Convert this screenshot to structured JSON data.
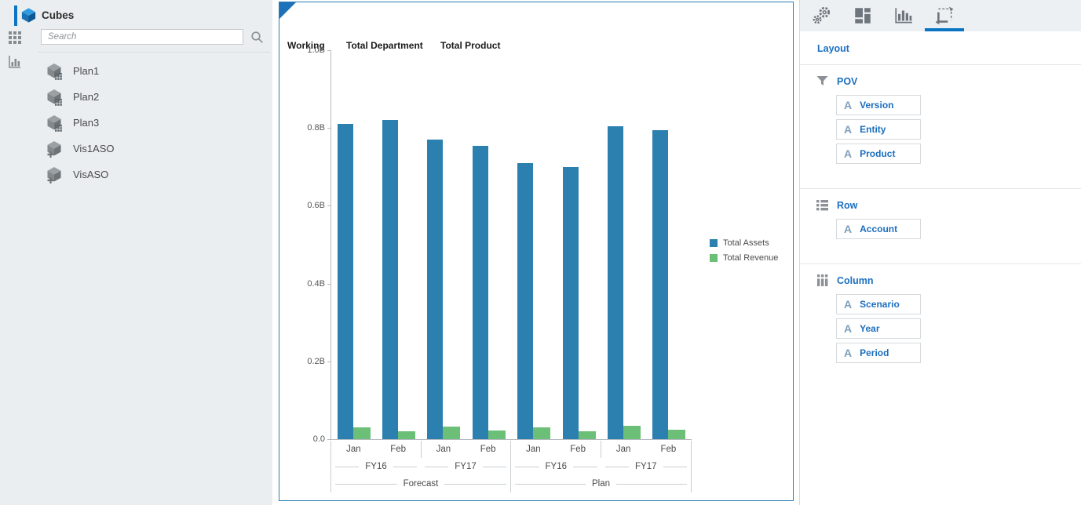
{
  "sidebar": {
    "title": "Cubes",
    "search_placeholder": "Search",
    "items": [
      {
        "label": "Plan1",
        "type": "bso"
      },
      {
        "label": "Plan2",
        "type": "bso"
      },
      {
        "label": "Plan3",
        "type": "bso"
      },
      {
        "label": "Vis1ASO",
        "type": "aso"
      },
      {
        "label": "VisASO",
        "type": "aso"
      }
    ]
  },
  "chart_data": {
    "type": "bar",
    "pov_members": [
      "Working",
      "Total Department",
      "Total Product"
    ],
    "categories_periods": [
      "Jan",
      "Feb",
      "Jan",
      "Feb",
      "Jan",
      "Feb",
      "Jan",
      "Feb"
    ],
    "categories_years": [
      "FY16",
      "FY17",
      "FY16",
      "FY17"
    ],
    "categories_scenarios": [
      "Forecast",
      "Plan"
    ],
    "series": [
      {
        "name": "Total Assets",
        "color": "#2b80b0",
        "values_billions": [
          0.81,
          0.82,
          0.77,
          0.755,
          0.71,
          0.7,
          0.805,
          0.795
        ]
      },
      {
        "name": "Total Revenue",
        "color": "#6cbf76",
        "values_billions": [
          0.03,
          0.02,
          0.033,
          0.022,
          0.03,
          0.02,
          0.035,
          0.024
        ]
      }
    ],
    "y_ticks": [
      "1.0B",
      "0.8B",
      "0.6B",
      "0.4B",
      "0.2B",
      "0.0"
    ],
    "ylim": [
      0,
      1.0
    ],
    "y_unit": "billions",
    "grid": false,
    "legend_position": "right"
  },
  "right_panel": {
    "tabs": [
      {
        "icon": "gears-icon",
        "selected": false
      },
      {
        "icon": "tiles-icon",
        "selected": false
      },
      {
        "icon": "bar-chart-icon",
        "selected": false
      },
      {
        "icon": "layout-canvas-icon",
        "selected": true
      }
    ],
    "title": "Layout",
    "sections": [
      {
        "icon": "funnel-icon",
        "label": "POV",
        "items": [
          "Version",
          "Entity",
          "Product"
        ]
      },
      {
        "icon": "rows-icon",
        "label": "Row",
        "items": [
          "Account"
        ]
      },
      {
        "icon": "columns-icon",
        "label": "Column",
        "items": [
          "Scenario",
          "Year",
          "Period"
        ]
      }
    ]
  },
  "colors": {
    "accent_blue": "#0b74c4",
    "link_blue": "#1c6fbf",
    "bar_blue": "#2b80b0",
    "bar_green": "#6cbf76",
    "card_border_blue": "#2b7cb5",
    "sidebar_bg": "#eaeef0"
  }
}
